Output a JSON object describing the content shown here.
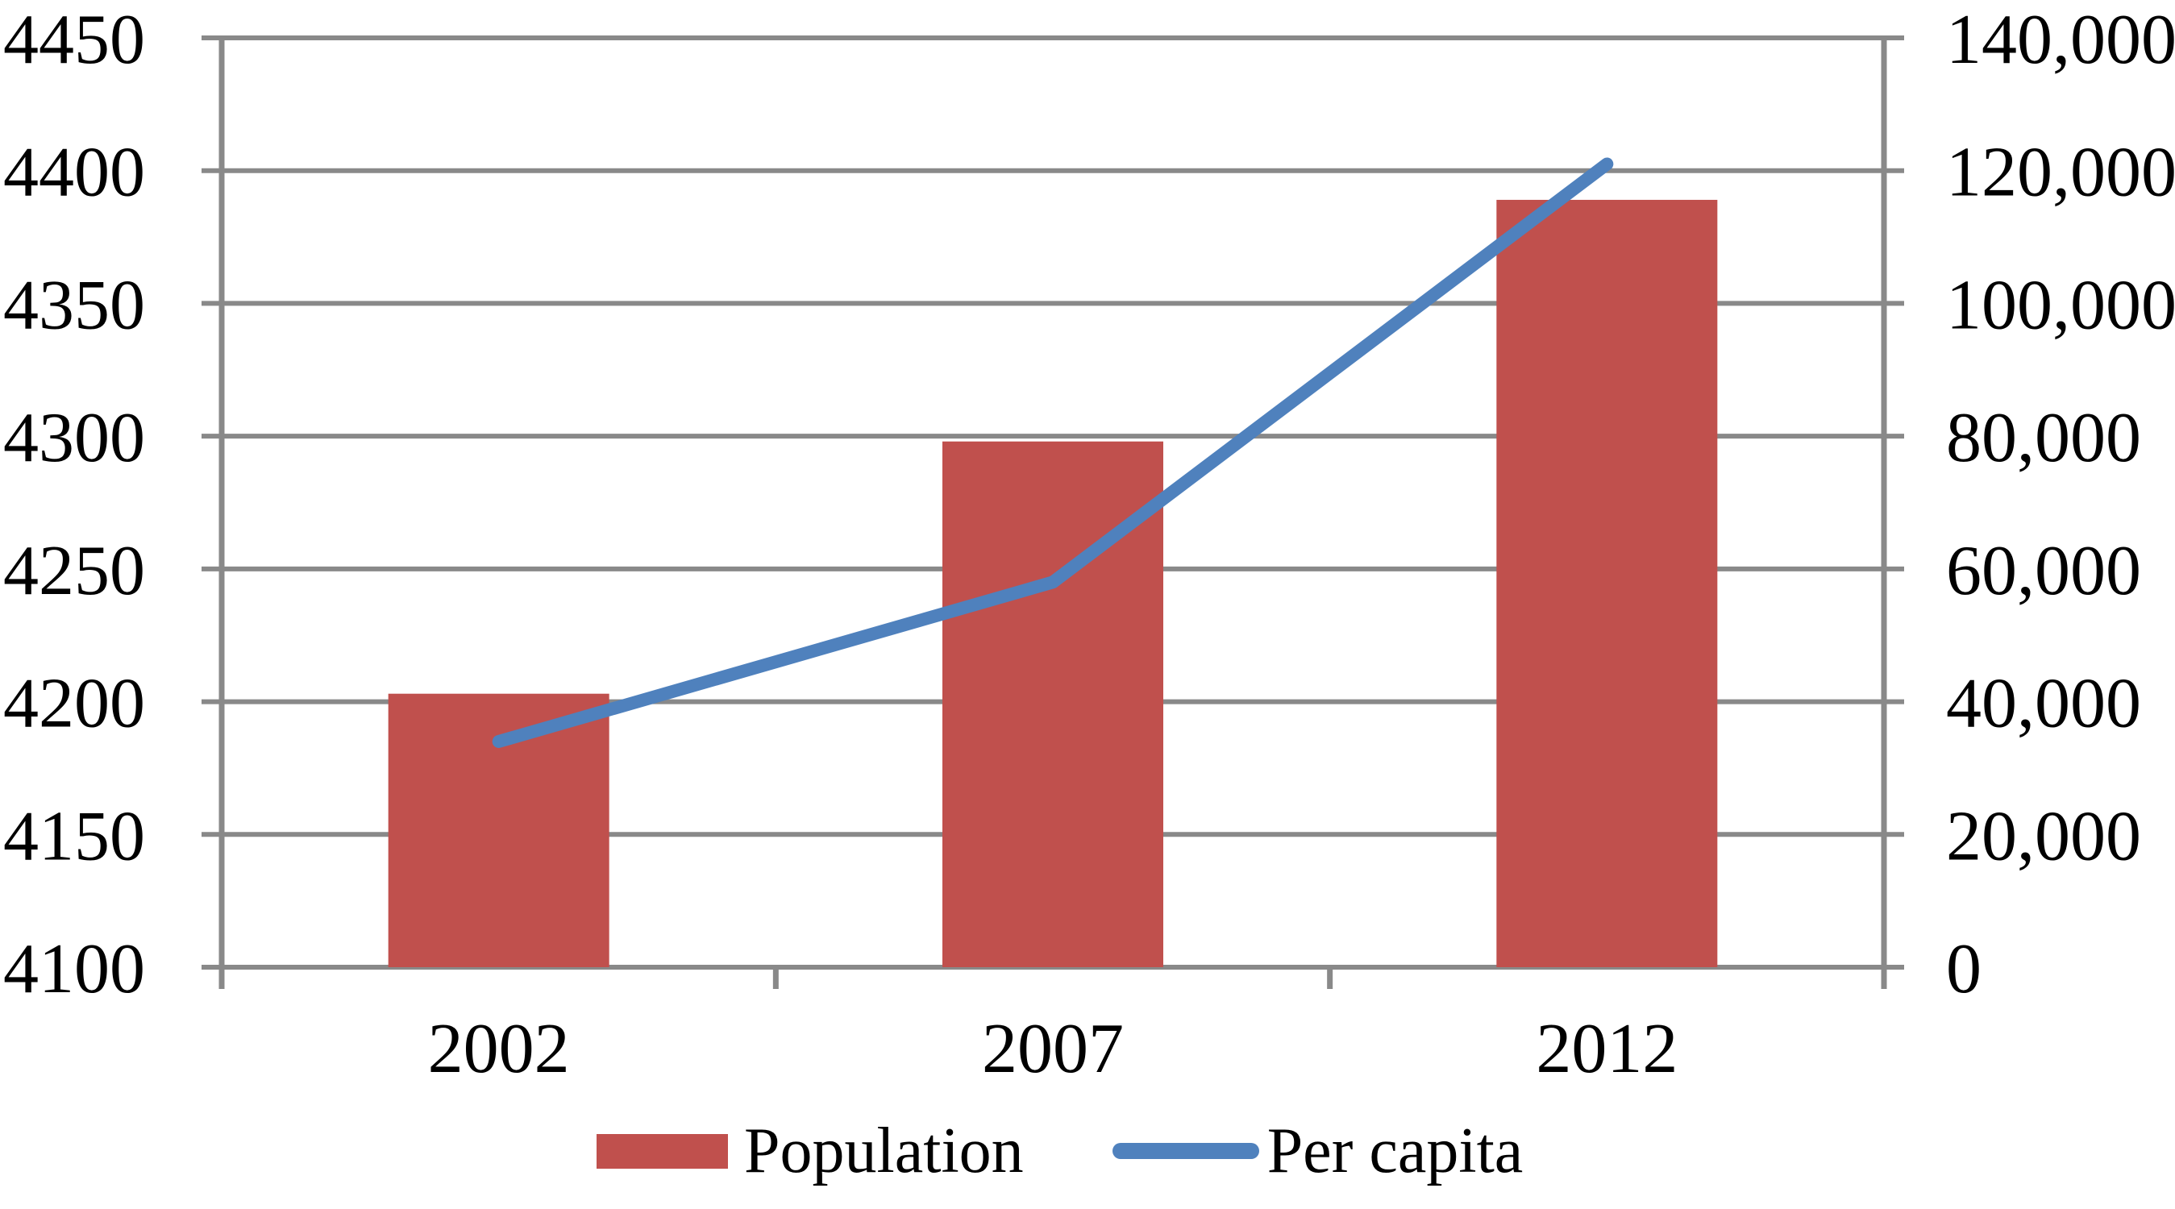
{
  "chart_data": {
    "type": "combo",
    "title": "",
    "categories": [
      "2002",
      "2007",
      "2012"
    ],
    "series": [
      {
        "name": "Population",
        "type": "bar",
        "axis": "left",
        "color": "#C0504D",
        "values": [
          4203,
          4298,
          4389
        ]
      },
      {
        "name": "Per capita",
        "type": "line",
        "axis": "right",
        "color": "#4F81BD",
        "values": [
          34000,
          58000,
          121000
        ]
      }
    ],
    "left_axis": {
      "min": 4100,
      "max": 4450,
      "step": 50,
      "tick_labels": [
        "4450",
        "4400",
        "4350",
        "4300",
        "4250",
        "4200",
        "4150",
        "4100"
      ]
    },
    "right_axis": {
      "min": 0,
      "max": 140000,
      "step": 20000,
      "tick_labels": [
        "140,000",
        "120,000",
        "100,000",
        "80,000",
        "60,000",
        "40,000",
        "20,000",
        "0"
      ]
    },
    "grid": true,
    "legend_position": "bottom"
  },
  "legend": {
    "items": [
      {
        "label": "Population",
        "swatch": "rect",
        "color": "#C0504D"
      },
      {
        "label": "Per capita",
        "swatch": "line",
        "color": "#4F81BD"
      }
    ]
  },
  "colors": {
    "bar": "#C0504D",
    "line": "#4F81BD",
    "gridline": "#898989",
    "axis": "#898989",
    "text": "#000000",
    "background": "#FFFFFF"
  }
}
